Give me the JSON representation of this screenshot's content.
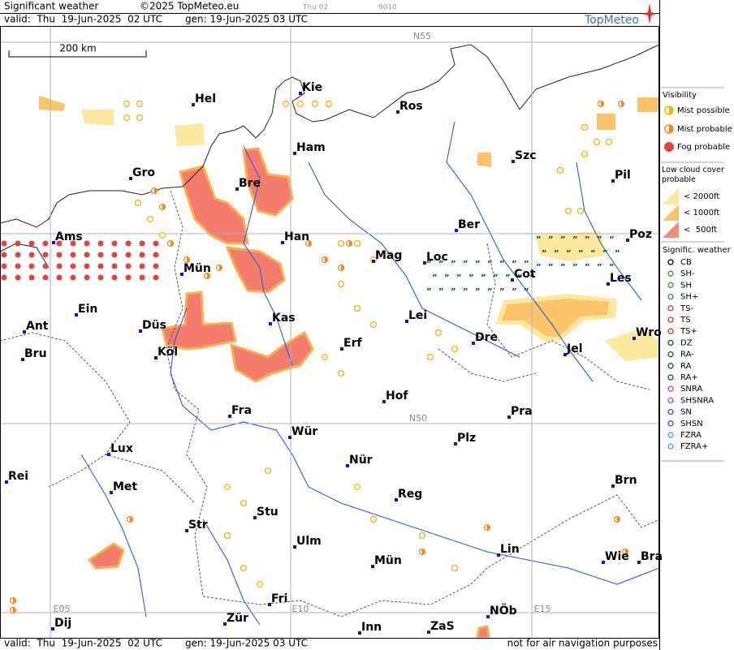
{
  "header": {
    "title": "Significant weather",
    "copyright": "©2025 TopMeteo.eu",
    "run": "Thu 02",
    "code": "9010",
    "valid": "valid:  Thu  19-Jun-2025  02 UTC",
    "gen": "gen: 19-Jun-2025 03 UTC",
    "logo": "TopMeteo"
  },
  "map": {
    "scale": "200 km",
    "grid_labels": [
      "N55",
      "N50",
      "E05",
      "E10",
      "E15"
    ],
    "cities": [
      "Hel",
      "Kie",
      "Ros",
      "Ham",
      "Szc",
      "Gro",
      "Bre",
      "Pil",
      "Ams",
      "Han",
      "Ber",
      "Poz",
      "Mag",
      "Loc",
      "Mün",
      "Cot",
      "Les",
      "Ein",
      "Kas",
      "Lei",
      "Ant",
      "Düs",
      "Erf",
      "Dre",
      "Wro",
      "Bru",
      "Köl",
      "Jel",
      "Hof",
      "Fra",
      "Pra",
      "Wür",
      "Plz",
      "Lux",
      "Nür",
      "Rei",
      "Met",
      "Reg",
      "Brn",
      "Stu",
      "Str",
      "Ulm",
      "Lin",
      "Wie",
      "Bra",
      "Mün",
      "Fri",
      "NÖb",
      "Dij",
      "Zür",
      "Inn",
      "ZaS"
    ]
  },
  "legend": {
    "visibility": {
      "title": "Visibility",
      "items": [
        "Mist possible",
        "Mist probable",
        "Fog probable"
      ]
    },
    "low_cloud": {
      "title": "Low cloud cover probable",
      "items": [
        "< 2000ft",
        "< 1000ft",
        "<  500ft"
      ]
    },
    "weather": {
      "title": "Signific. weather",
      "items": [
        "CB",
        "SH-",
        "SH",
        "SH+",
        "TS-",
        "TS",
        "TS+",
        "DZ",
        "RA-",
        "RA",
        "RA+",
        "SNRA",
        "SHSNRA",
        "SN",
        "SHSN",
        "FZRA",
        "FZRA+"
      ]
    }
  },
  "footer": {
    "valid": "valid:  Thu  19-Jun-2025  02 UTC",
    "gen": "gen: 19-Jun-2025 03 UTC",
    "note": "not for air navigation purposes"
  }
}
